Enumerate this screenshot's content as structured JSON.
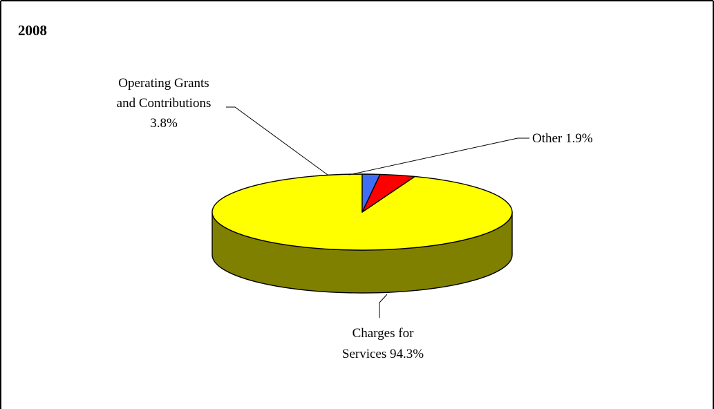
{
  "chart_data": {
    "type": "pie",
    "title": "2008",
    "style": "3d",
    "categories": [
      "Charges for Services",
      "Operating Grants and Contributions",
      "Other"
    ],
    "values": [
      94.3,
      3.8,
      1.9
    ],
    "value_suffix": "%",
    "colors": [
      "#ffff00",
      "#ff0000",
      "#3f6ef2"
    ],
    "side_colors": [
      "#808000",
      "#800000",
      "#1f3c8a"
    ],
    "labels": [
      {
        "lines": [
          "Charges for",
          "Services 94.3%"
        ]
      },
      {
        "lines": [
          "Operating Grants",
          "and Contributions",
          "3.8%"
        ]
      },
      {
        "lines": [
          "Other 1.9%"
        ]
      }
    ],
    "legend": "none"
  }
}
